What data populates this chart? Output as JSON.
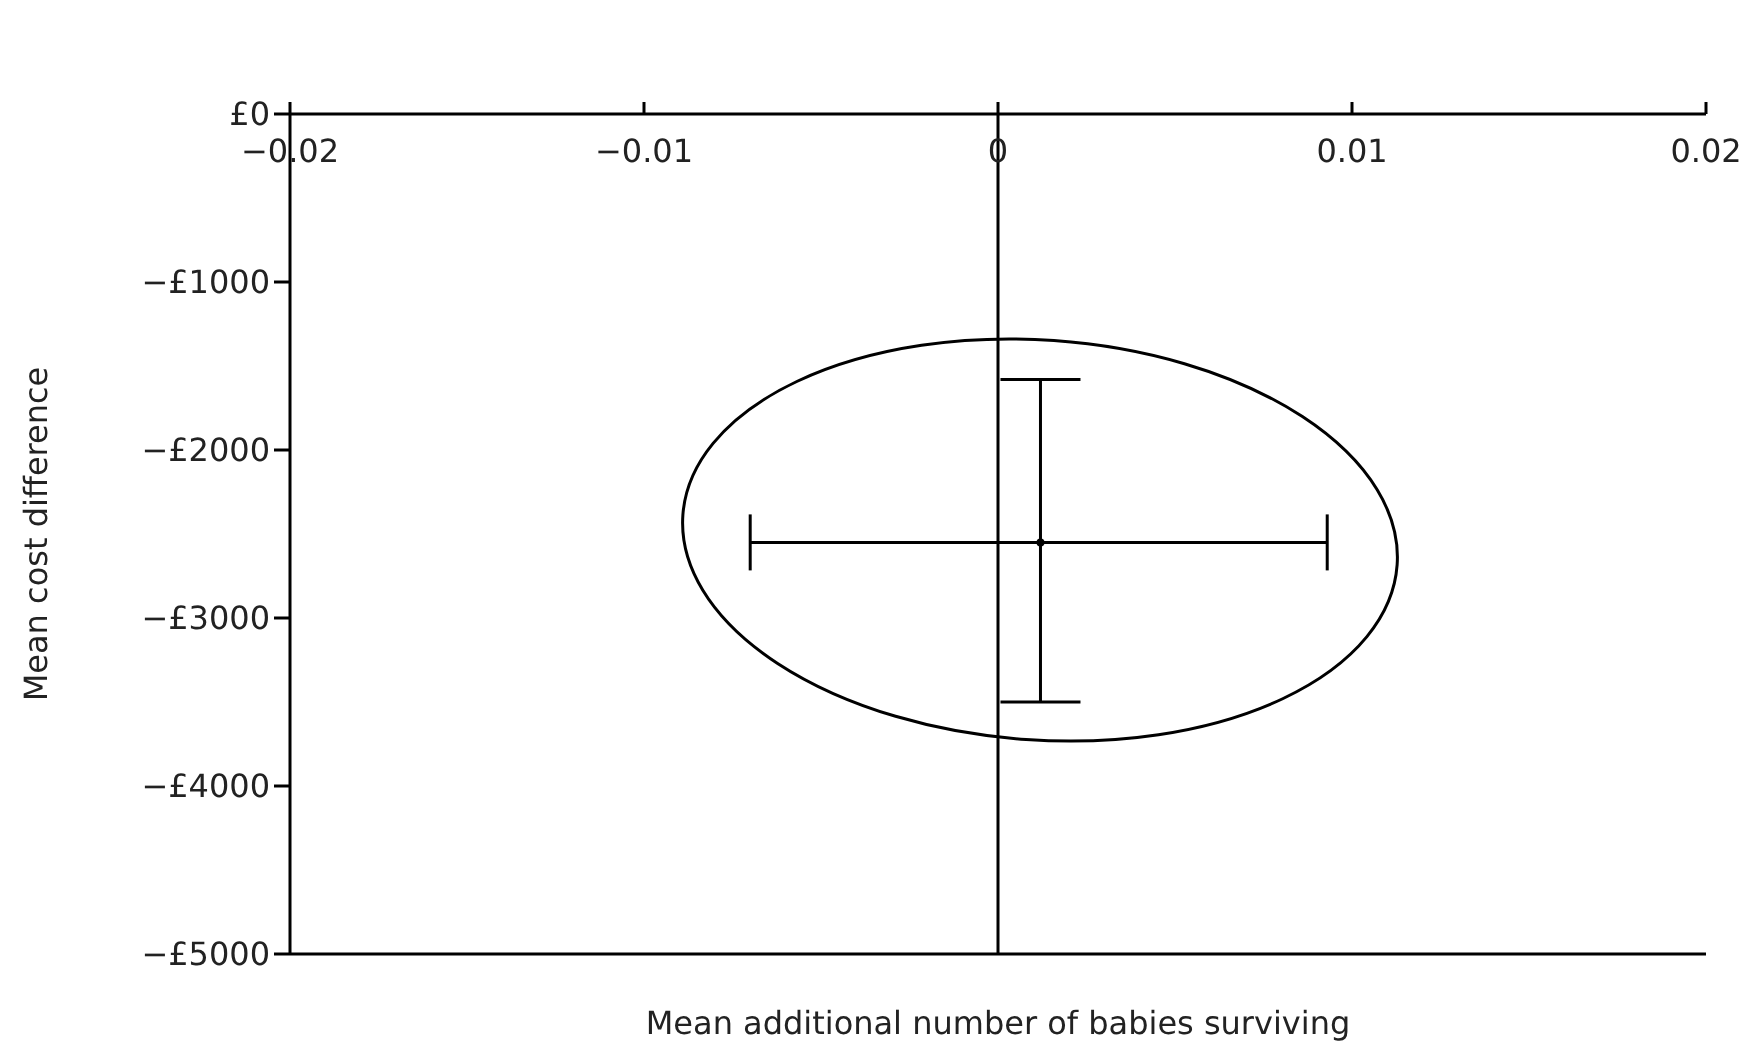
{
  "chart_data": {
    "type": "scatter",
    "xlabel": "Mean additional number of babies surviving",
    "ylabel": "Mean cost difference",
    "xlim": [
      -0.02,
      0.02
    ],
    "xticks": [
      {
        "value": -0.02,
        "label": "−0.02"
      },
      {
        "value": -0.01,
        "label": "−0.01"
      },
      0,
      0.01,
      0.02
    ],
    "ylim": [
      -5000,
      0
    ],
    "yticks": [
      {
        "value": 0,
        "label": "£0"
      },
      {
        "value": -1000,
        "label": "−£1000"
      },
      {
        "value": -2000,
        "label": "−£2000"
      },
      {
        "value": -3000,
        "label": "−£3000"
      },
      {
        "value": -4000,
        "label": "−£4000"
      },
      {
        "value": -5000,
        "label": "−£5000"
      }
    ],
    "ref_lines": [
      {
        "axis": "x",
        "value": 0,
        "color": "#000000"
      }
    ],
    "series": [
      {
        "color": "#000000",
        "x": [
          0.0012
        ],
        "values": [
          -2550
        ],
        "errors": [
          [
            -3500,
            -1580
          ]
        ],
        "xerrors": [
          [
            -0.007,
            0.0093
          ]
        ]
      }
    ]
  }
}
